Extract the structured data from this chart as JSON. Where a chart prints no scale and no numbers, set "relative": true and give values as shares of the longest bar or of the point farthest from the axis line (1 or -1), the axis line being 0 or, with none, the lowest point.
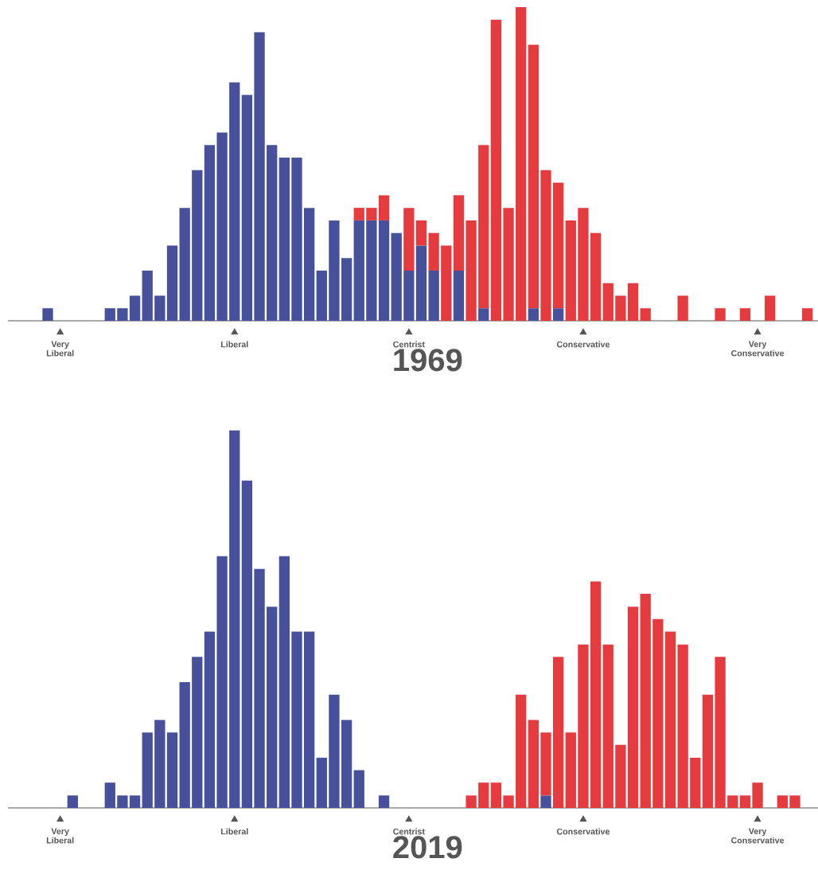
{
  "chart_data": [
    {
      "type": "bar",
      "stacked": true,
      "relative": true,
      "title": "1969",
      "categories": [
        null,
        "Very Liberal",
        null,
        null,
        null,
        null,
        null,
        null,
        null,
        null,
        null,
        null,
        null,
        null,
        null,
        "Liberal",
        null,
        null,
        null,
        null,
        null,
        null,
        null,
        null,
        null,
        null,
        null,
        null,
        null,
        "Centrist",
        null,
        null,
        null,
        null,
        null,
        null,
        null,
        null,
        null,
        null,
        null,
        null,
        null,
        "Conservative",
        null,
        null,
        null,
        null,
        null,
        null,
        null,
        null,
        null,
        null,
        null,
        null,
        null,
        "Very Conservative",
        null,
        null,
        null,
        null
      ],
      "series": [
        {
          "color": "#46509b",
          "values": [
            0.04,
            null,
            null,
            null,
            null,
            0.04,
            0.04,
            0.08,
            0.16,
            0.08,
            0.24,
            0.36,
            0.48,
            0.56,
            0.6,
            0.76,
            0.72,
            0.92,
            0.56,
            0.52,
            0.52,
            0.36,
            0.16,
            0.32,
            0.2,
            0.32,
            0.32,
            0.32,
            0.28,
            0.16,
            0.24,
            0.16,
            null,
            0.16,
            null,
            0.04,
            null,
            null,
            null,
            0.04,
            null,
            0.04,
            null,
            null,
            null,
            null,
            null,
            null,
            null,
            null,
            null,
            null,
            null,
            null,
            null,
            null,
            null,
            null,
            null,
            null,
            null,
            null
          ]
        },
        {
          "color": "#e53b3f",
          "values": [
            null,
            null,
            null,
            null,
            null,
            null,
            null,
            null,
            null,
            null,
            null,
            null,
            null,
            null,
            null,
            null,
            null,
            null,
            null,
            null,
            null,
            null,
            null,
            null,
            null,
            0.04,
            0.04,
            0.08,
            null,
            0.2,
            0.08,
            0.12,
            0.24,
            0.24,
            0.32,
            0.52,
            0.96,
            0.36,
            1,
            0.84,
            0.48,
            0.4,
            0.32,
            0.36,
            0.28,
            0.12,
            0.08,
            0.12,
            0.04,
            null,
            null,
            0.08,
            null,
            null,
            0.04,
            null,
            0.04,
            null,
            0.08,
            null,
            null,
            0.04
          ]
        }
      ]
    },
    {
      "type": "bar",
      "stacked": true,
      "relative": true,
      "title": "2019",
      "categories": [
        null,
        "Very Liberal",
        null,
        null,
        null,
        null,
        null,
        null,
        null,
        null,
        null,
        null,
        null,
        null,
        null,
        "Liberal",
        null,
        null,
        null,
        null,
        null,
        null,
        null,
        null,
        null,
        null,
        null,
        null,
        null,
        "Centrist",
        null,
        null,
        null,
        null,
        null,
        null,
        null,
        null,
        null,
        null,
        null,
        null,
        null,
        "Conservative",
        null,
        null,
        null,
        null,
        null,
        null,
        null,
        null,
        null,
        null,
        null,
        null,
        null,
        "Very Conservative",
        null,
        null,
        null,
        null
      ],
      "series": [
        {
          "color": "#46509b",
          "values": [
            null,
            null,
            0.033,
            null,
            null,
            0.067,
            0.033,
            0.033,
            0.2,
            0.233,
            0.2,
            0.333,
            0.4,
            0.467,
            0.667,
            1,
            0.867,
            0.633,
            0.533,
            0.667,
            0.467,
            0.467,
            0.133,
            0.3,
            0.233,
            0.1,
            null,
            0.033,
            null,
            null,
            null,
            null,
            null,
            null,
            null,
            null,
            null,
            null,
            null,
            null,
            0.033,
            null,
            null,
            null,
            null,
            null,
            null,
            null,
            null,
            null,
            null,
            null,
            null,
            null,
            null,
            null,
            null,
            null,
            null,
            null,
            null,
            null
          ]
        },
        {
          "color": "#e53b3f",
          "values": [
            null,
            null,
            null,
            null,
            null,
            null,
            null,
            null,
            null,
            null,
            null,
            null,
            null,
            null,
            null,
            null,
            null,
            null,
            null,
            null,
            null,
            null,
            null,
            null,
            null,
            null,
            null,
            null,
            null,
            null,
            null,
            null,
            null,
            null,
            0.033,
            0.067,
            0.067,
            0.033,
            0.3,
            0.233,
            0.167,
            0.4,
            0.2,
            0.433,
            0.6,
            0.433,
            0.167,
            0.533,
            0.567,
            0.5,
            0.467,
            0.433,
            0.133,
            0.3,
            0.4,
            0.033,
            0.033,
            0.067,
            null,
            0.033,
            0.033,
            null
          ]
        }
      ]
    }
  ]
}
